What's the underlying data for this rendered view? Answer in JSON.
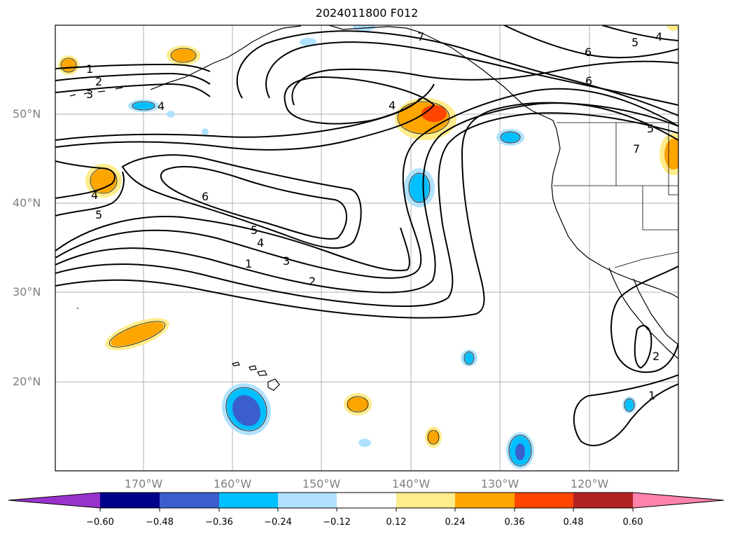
{
  "title": "2024011800 F012",
  "lat_labels": [
    "50°N",
    "40°N",
    "30°N",
    "20°N"
  ],
  "lon_labels": [
    "170°W",
    "160°W",
    "150°W",
    "140°W",
    "130°W",
    "120°W"
  ],
  "contour_labels": [
    "1",
    "2",
    "3",
    "4",
    "5",
    "6",
    "7"
  ],
  "colorbar": {
    "ticks": [
      "−0.60",
      "−0.48",
      "−0.36",
      "−0.24",
      "−0.12",
      "0.12",
      "0.24",
      "0.36",
      "0.48",
      "0.60"
    ],
    "colors": [
      "#9932cc",
      "#00008b",
      "#3a5fcd",
      "#00bfff",
      "#b0e2ff",
      "#ffffff",
      "#ffec8b",
      "#ffa500",
      "#ff4500",
      "#b22222",
      "#ff82ab"
    ]
  }
}
